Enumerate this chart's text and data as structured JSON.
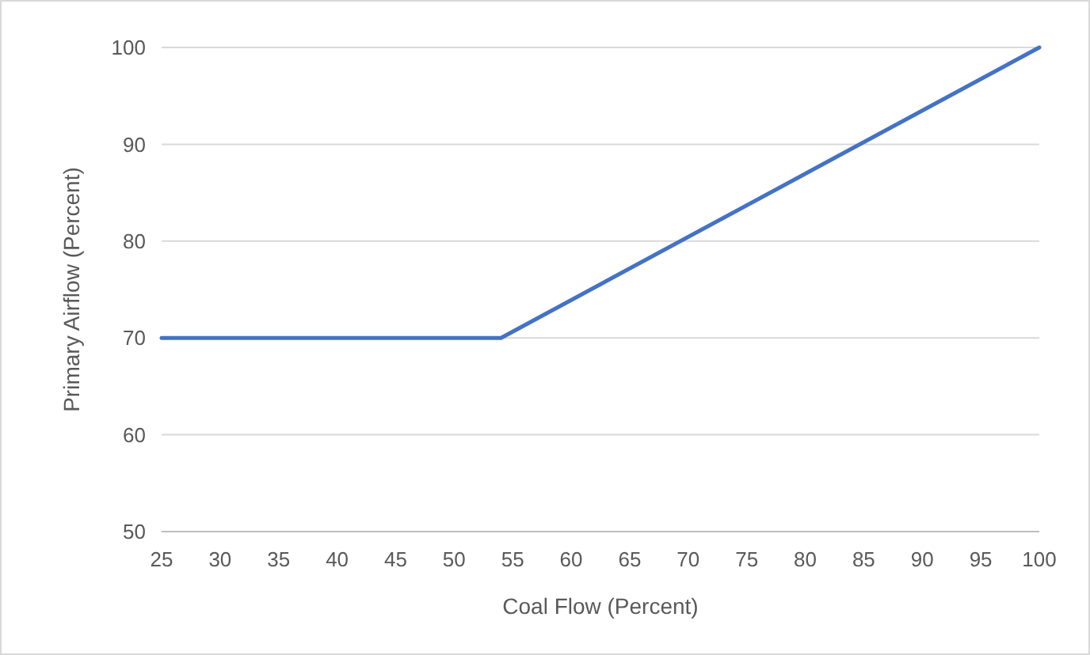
{
  "chart_data": {
    "type": "line",
    "xlabel": "Coal Flow (Percent)",
    "ylabel": "Primary Airflow (Percent)",
    "x": [
      25,
      54,
      100
    ],
    "series": [
      {
        "color": "#4472c4",
        "values": [
          70,
          70,
          100
        ]
      }
    ],
    "xlim": [
      25,
      100
    ],
    "xticks": [
      25,
      30,
      35,
      40,
      45,
      50,
      55,
      60,
      65,
      70,
      75,
      80,
      85,
      90,
      95,
      100
    ],
    "ylim": [
      50,
      100
    ],
    "yticks": [
      50,
      60,
      70,
      80,
      90,
      100
    ],
    "grid": "y",
    "marker": "none",
    "line_style": "solid"
  }
}
